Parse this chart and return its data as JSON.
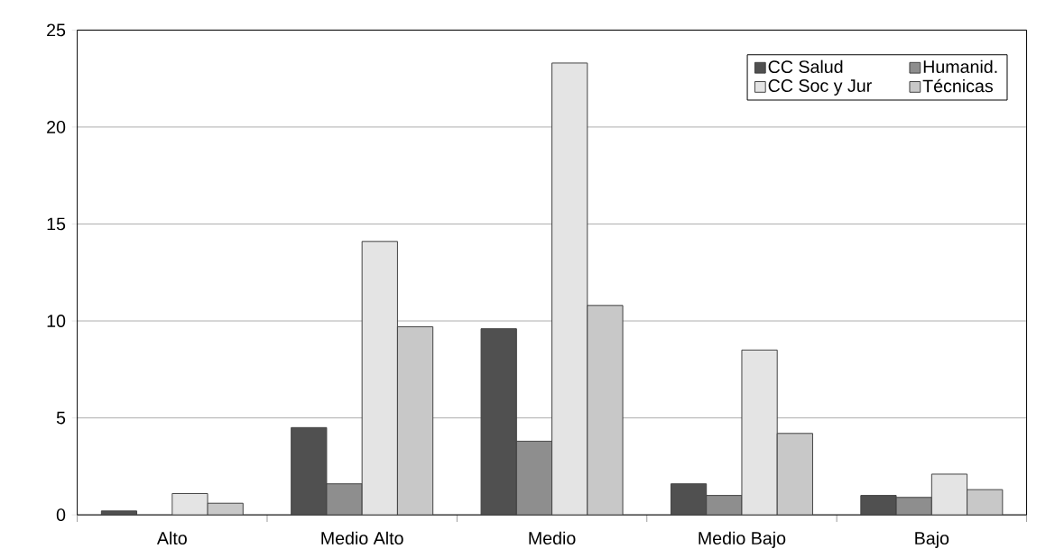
{
  "chart_data": {
    "type": "bar",
    "categories": [
      "Alto",
      "Medio Alto",
      "Medio",
      "Medio Bajo",
      "Bajo"
    ],
    "series": [
      {
        "name": "CC Salud",
        "color": "#505050",
        "values": [
          0.2,
          4.5,
          9.6,
          1.6,
          1.0
        ]
      },
      {
        "name": "Humanid.",
        "color": "#8e8e8e",
        "values": [
          null,
          1.6,
          3.8,
          1.0,
          0.9
        ]
      },
      {
        "name": "CC Soc y Jur",
        "color": "#e4e4e4",
        "values": [
          1.1,
          14.1,
          23.3,
          8.5,
          2.1
        ]
      },
      {
        "name": "Técnicas",
        "color": "#c8c8c8",
        "values": [
          0.6,
          9.7,
          10.8,
          4.2,
          1.3
        ]
      }
    ],
    "ylim": [
      0,
      25
    ],
    "yticks": [
      0,
      5,
      10,
      15,
      20,
      25
    ],
    "grid": "y",
    "legend": "top right"
  }
}
